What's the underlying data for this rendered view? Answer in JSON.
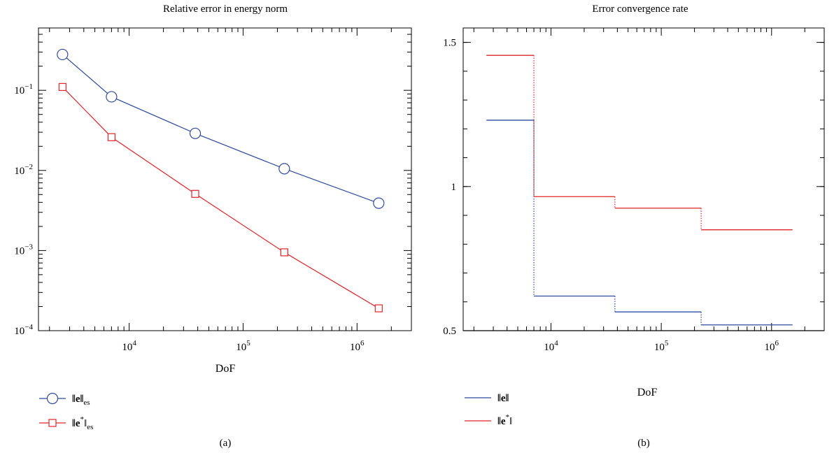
{
  "chart_data": [
    {
      "type": "line",
      "title": "Relative error in energy norm",
      "xlabel": "DoF",
      "ylabel": "",
      "x_scale": "log",
      "y_scale": "log",
      "xlim": [
        1600,
        3000000
      ],
      "ylim": [
        0.0001,
        0.6
      ],
      "grid": false,
      "legend_position": "bottom-left",
      "x_ticks": [
        {
          "value": 10000,
          "base": "10",
          "exp": "4"
        },
        {
          "value": 100000,
          "base": "10",
          "exp": "5"
        },
        {
          "value": 1000000,
          "base": "10",
          "exp": "6"
        }
      ],
      "y_ticks": [
        {
          "value": 0.1,
          "base": "10",
          "exp": "−1"
        },
        {
          "value": 0.01,
          "base": "10",
          "exp": "−2"
        },
        {
          "value": 0.001,
          "base": "10",
          "exp": "−3"
        },
        {
          "value": 0.0001,
          "base": "10",
          "exp": "−4"
        }
      ],
      "series": [
        {
          "name": "‖e‖es",
          "label_main": "‖e‖",
          "label_sub": "es",
          "color": "#2e4a9c",
          "marker": "circle",
          "x": [
            2600,
            7000,
            38000,
            230000,
            1550000
          ],
          "y": [
            0.28,
            0.083,
            0.029,
            0.0105,
            0.0039
          ]
        },
        {
          "name": "‖e*‖es",
          "label_main": "‖e",
          "label_sup": "*",
          "label_end": "‖",
          "label_sub": "es",
          "color": "#e0242a",
          "marker": "square",
          "x": [
            2600,
            7000,
            38000,
            230000,
            1550000
          ],
          "y": [
            0.11,
            0.026,
            0.0051,
            0.00095,
            0.00019
          ]
        }
      ],
      "caption": "(a)"
    },
    {
      "type": "line",
      "title": "Error convergence rate",
      "xlabel": "DoF",
      "ylabel": "",
      "x_scale": "log",
      "y_scale": "linear",
      "xlim": [
        1600,
        3000000
      ],
      "ylim": [
        0.5,
        1.55
      ],
      "grid": false,
      "legend_position": "bottom-left",
      "x_ticks": [
        {
          "value": 10000,
          "base": "10",
          "exp": "4"
        },
        {
          "value": 100000,
          "base": "10",
          "exp": "5"
        },
        {
          "value": 1000000,
          "base": "10",
          "exp": "6"
        }
      ],
      "y_ticks": [
        {
          "value": 1.5,
          "label": "1.5"
        },
        {
          "value": 1.0,
          "label": "1"
        },
        {
          "value": 0.5,
          "label": "0.5"
        }
      ],
      "series": [
        {
          "name": "‖e‖",
          "label_main": "‖e‖",
          "color": "#2e4a9c",
          "step_edges": [
            2600,
            7000,
            38000,
            230000,
            1550000
          ],
          "values": [
            1.23,
            0.62,
            0.565,
            0.52
          ]
        },
        {
          "name": "‖e*‖",
          "label_main": "‖e",
          "label_sup": "*",
          "label_end": "‖",
          "color": "#e0242a",
          "step_edges": [
            2600,
            7000,
            38000,
            230000,
            1550000
          ],
          "values": [
            1.455,
            0.965,
            0.925,
            0.85
          ]
        }
      ],
      "caption": "(b)"
    }
  ]
}
